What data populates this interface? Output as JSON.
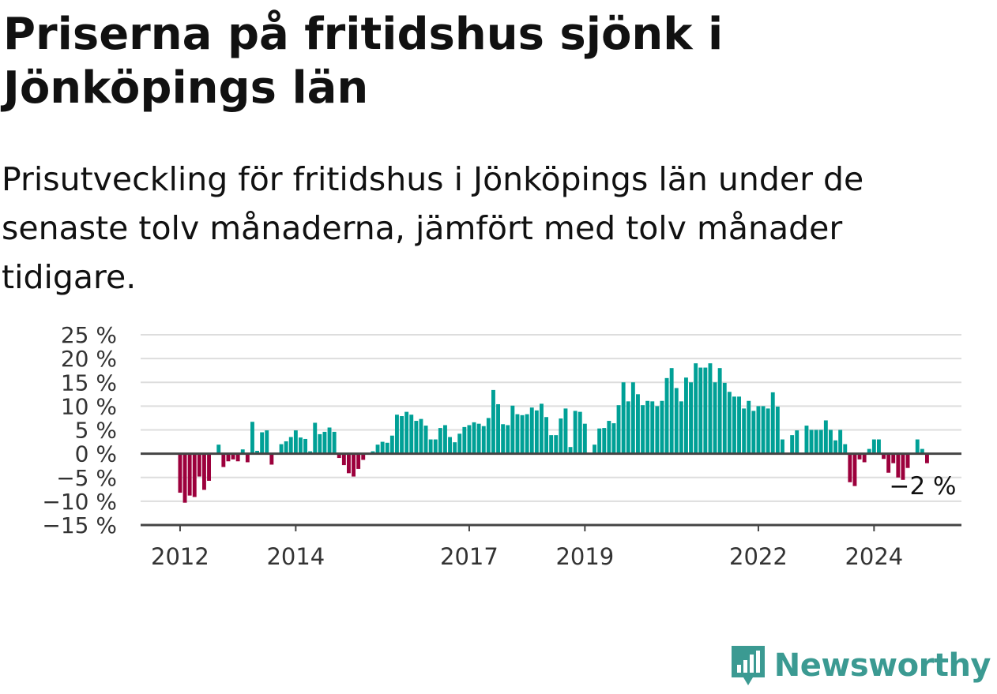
{
  "title": "Priserna på fritidshus sjönk i Jönköpings län",
  "subtitle": "Prisutveckling för fritidshus i Jönköpings län under de senaste tolv månaderna, jämfört med tolv månader tidigare.",
  "brand": "Newsworthy",
  "colors": {
    "positive": "#00a096",
    "negative": "#9c003c",
    "brand": "#3b9a92",
    "grid": "#dddddd",
    "axis": "#444444"
  },
  "chart_data": {
    "type": "bar",
    "ylim": [
      -15,
      25
    ],
    "y_ticks": [
      25,
      20,
      15,
      10,
      5,
      0,
      -5,
      -10,
      -15
    ],
    "y_tick_labels": [
      "25 %",
      "20 %",
      "15 %",
      "10 %",
      "5 %",
      "0 %",
      "−5 %",
      "−10 %",
      "−15 %"
    ],
    "x_ticks": [
      {
        "label": "2012",
        "index": 0
      },
      {
        "label": "2014",
        "index": 24
      },
      {
        "label": "2017",
        "index": 60
      },
      {
        "label": "2019",
        "index": 84
      },
      {
        "label": "2022",
        "index": 120
      },
      {
        "label": "2024",
        "index": 144
      }
    ],
    "x_start": "2012-01",
    "x_end": "2025-01",
    "last_value_label": "−2 %",
    "grid": true,
    "values": [
      -8.2,
      -10.3,
      -8.8,
      -9.1,
      -4.8,
      -7.6,
      -5.7,
      0.0,
      1.9,
      -2.8,
      -1.6,
      -1.2,
      -1.6,
      0.9,
      -1.8,
      6.7,
      0.6,
      4.5,
      4.9,
      -2.3,
      0.0,
      2.0,
      2.6,
      3.5,
      4.9,
      3.4,
      3.1,
      0.5,
      6.5,
      4.1,
      4.6,
      5.5,
      4.6,
      -0.9,
      -2.4,
      -4.1,
      -4.8,
      -3.2,
      -1.3,
      0.0,
      0.5,
      1.9,
      2.5,
      2.3,
      3.8,
      8.2,
      7.9,
      8.8,
      8.2,
      6.9,
      7.3,
      5.9,
      3.0,
      3.0,
      5.4,
      6.0,
      3.5,
      2.4,
      4.2,
      5.6,
      6.0,
      6.6,
      6.3,
      5.8,
      7.5,
      13.4,
      10.4,
      6.2,
      6.0,
      10.1,
      8.3,
      8.1,
      8.3,
      9.7,
      9.1,
      10.5,
      7.7,
      3.9,
      3.9,
      7.4,
      9.5,
      1.4,
      9.0,
      8.8,
      6.3,
      0.0,
      1.9,
      5.3,
      5.4,
      6.9,
      6.4,
      10.2,
      15.0,
      11.0,
      15.0,
      12.5,
      10.2,
      11.1,
      11.0,
      10.0,
      11.1,
      15.9,
      18.0,
      13.8,
      11.0,
      16.0,
      15.0,
      19.0,
      18.1,
      18.1,
      19.0,
      15.0,
      18.0,
      14.9,
      13.0,
      12.0,
      12.0,
      9.5,
      11.1,
      9.0,
      10.0,
      10.0,
      9.5,
      12.9,
      9.9,
      3.0,
      0.0,
      3.9,
      4.9,
      0.0,
      5.9,
      5.0,
      5.0,
      5.0,
      7.0,
      5.0,
      2.8,
      5.0,
      2.0,
      -6.0,
      -6.8,
      -1.2,
      -1.8,
      1.0,
      3.0,
      3.0,
      -1.1,
      -4.0,
      -2.0,
      -5.0,
      -5.5,
      -3.0,
      0.0,
      3.0,
      1.0,
      -2.0
    ]
  }
}
